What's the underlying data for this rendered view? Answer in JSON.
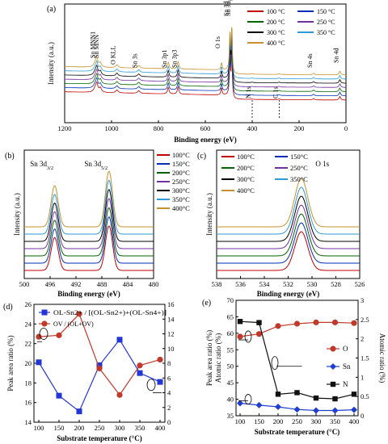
{
  "chart_data": [
    {
      "type": "line",
      "panel": "(a)",
      "xlabel": "Binding energy (eV)",
      "ylabel": "Intensity (a.u.)",
      "xlim": [
        1200,
        0
      ],
      "xticks": [
        1200,
        1000,
        800,
        600,
        400,
        200,
        0
      ],
      "peak_labels": [
        "Sn MNN1",
        "Sn MNN",
        "O KLL",
        "Sn 3s",
        "Sn 3p1",
        "Sn 3p3",
        "O 1s",
        "Sn 3d3/2",
        "Sn 3d5/2",
        "N 1s",
        "C 1s",
        "Sn 4s",
        "Sn 4d"
      ],
      "peak_positions": [
        1064,
        1048,
        977,
        884,
        758,
        716,
        531,
        495,
        487,
        400,
        285,
        138,
        26
      ],
      "legend": {
        "placement": "top-right",
        "columns": 2
      },
      "series": [
        {
          "name": "100 °C",
          "color": "#c00000"
        },
        {
          "name": "150 °C",
          "color": "#002eb8"
        },
        {
          "name": "200 °C",
          "color": "#006400"
        },
        {
          "name": "250 °C",
          "color": "#7030a0"
        },
        {
          "name": "300 °C",
          "color": "#000000"
        },
        {
          "name": "350 °C",
          "color": "#2e9ad6"
        },
        {
          "name": "400 °C",
          "color": "#c8902e"
        }
      ]
    },
    {
      "type": "line",
      "panel": "(b)",
      "xlabel": "Binding energy (eV)",
      "ylabel": "Intensity (a.u.)",
      "xlim": [
        500,
        480
      ],
      "xticks": [
        500,
        496,
        492,
        488,
        484,
        480
      ],
      "peak_labels": [
        "Sn 3d3/2",
        "Sn 3d5/2"
      ],
      "peak_positions": [
        495.3,
        486.9
      ],
      "legend": {
        "placement": "right"
      },
      "series": [
        {
          "name": "100°C",
          "color": "#c00000"
        },
        {
          "name": "150°C",
          "color": "#002eb8"
        },
        {
          "name": "200°C",
          "color": "#006400"
        },
        {
          "name": "250°C",
          "color": "#7030a0"
        },
        {
          "name": "300°C",
          "color": "#000000"
        },
        {
          "name": "350°C",
          "color": "#2e9ad6"
        },
        {
          "name": "400°C",
          "color": "#c8902e"
        }
      ]
    },
    {
      "type": "line",
      "panel": "(c)",
      "xlabel": "Binding energy (eV)",
      "ylabel": "Intensity (a.u.)",
      "xlim": [
        538,
        526
      ],
      "xticks": [
        538,
        536,
        534,
        532,
        530,
        528,
        526
      ],
      "peak_labels": [
        "O 1s"
      ],
      "peak_positions": [
        530.9
      ],
      "legend": {
        "placement": "top",
        "columns": 2
      },
      "series": [
        {
          "name": "100°C",
          "color": "#c00000"
        },
        {
          "name": "150°C",
          "color": "#002eb8"
        },
        {
          "name": "200°C",
          "color": "#006400"
        },
        {
          "name": "250°C",
          "color": "#7030a0"
        },
        {
          "name": "300°C",
          "color": "#000000"
        },
        {
          "name": "350°C",
          "color": "#2e9ad6"
        },
        {
          "name": "400°C",
          "color": "#c8902e"
        }
      ]
    },
    {
      "type": "line",
      "panel": "(d)",
      "xlabel": "Substrate temperature (°C)",
      "ylabel": "Peak area ratio (%)",
      "x": [
        100,
        150,
        200,
        250,
        300,
        350,
        400
      ],
      "xticks": [
        100,
        150,
        200,
        250,
        300,
        350,
        400
      ],
      "ylim_left": [
        14,
        26
      ],
      "yticks_left": [
        14,
        16,
        18,
        20,
        22,
        24,
        26
      ],
      "ylim_right": [
        0,
        16
      ],
      "yticks_right": [
        0,
        2,
        4,
        6,
        8,
        10,
        12,
        14,
        16
      ],
      "series": [
        {
          "name": "OL-Sn2+ / [(OL-Sn2+)+(OL-Sn4+)]",
          "color": "#2236d6",
          "marker": "square",
          "axis": "left",
          "values": [
            20.1,
            16.7,
            15.1,
            19.8,
            22.4,
            19.0,
            18.1
          ]
        },
        {
          "name": "OV / (OL+OV)",
          "color": "#c0392b",
          "marker": "circle",
          "axis": "right",
          "values": [
            11.6,
            11.8,
            14.7,
            7.3,
            3.7,
            7.7,
            8.5
          ]
        }
      ]
    },
    {
      "type": "line",
      "panel": "(e)",
      "xlabel": "Substrate temperature (°C)",
      "ylabel": "Peak area ratio (%) / Atomic ratio (%)",
      "ylabel_left": [
        "Peak area ratio (%)",
        "Atomic ratio (%)"
      ],
      "ylabel_right": "Atomic ratio (%)",
      "x": [
        100,
        150,
        200,
        250,
        300,
        350,
        400
      ],
      "xticks": [
        100,
        150,
        200,
        250,
        300,
        350,
        400
      ],
      "ylim_left": [
        35,
        70
      ],
      "yticks_left": [
        35,
        40,
        45,
        50,
        55,
        60,
        65,
        70
      ],
      "ylim_right": [
        0,
        3
      ],
      "yticks_right": [
        0,
        0.5,
        1,
        1.5,
        2,
        2.5,
        3
      ],
      "legend": {
        "placement": "right"
      },
      "series": [
        {
          "name": "O",
          "color": "#c0392b",
          "marker": "circle",
          "axis": "left",
          "values": [
            59.0,
            59.8,
            62.2,
            62.9,
            63.3,
            63.3,
            63.1
          ]
        },
        {
          "name": "Sn",
          "color": "#1f3fd0",
          "marker": "diamond",
          "axis": "left",
          "values": [
            38.8,
            38.2,
            37.7,
            36.9,
            36.6,
            36.6,
            36.8
          ]
        },
        {
          "name": "N",
          "color": "#111111",
          "marker": "square",
          "axis": "right",
          "values": [
            2.45,
            2.42,
            0.56,
            0.6,
            0.46,
            0.44,
            0.56
          ]
        }
      ]
    }
  ]
}
